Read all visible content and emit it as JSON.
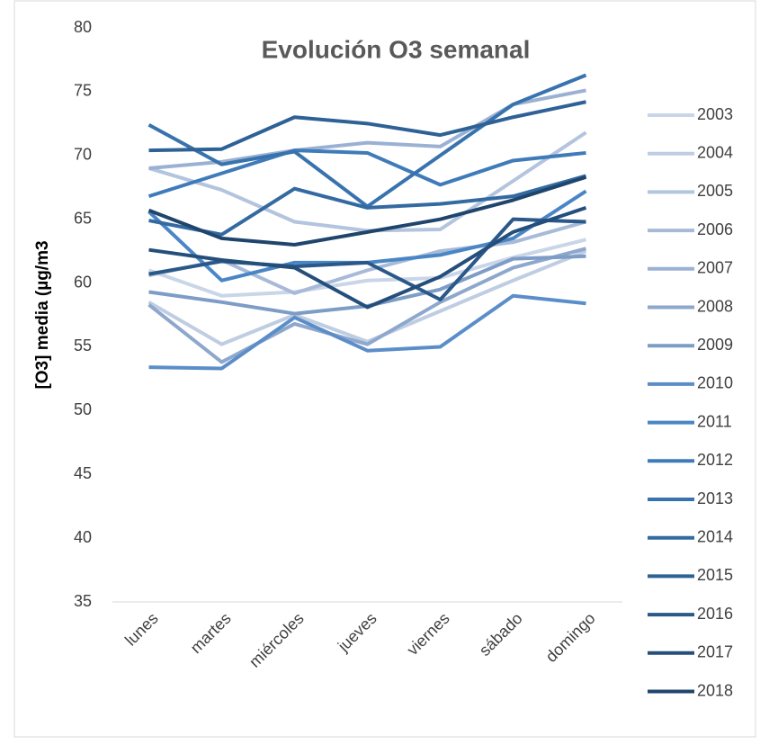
{
  "chart_data": {
    "type": "line",
    "title": "Evolución O3 semanal",
    "y_label": "[O3] media (µg/m3",
    "categories": [
      "lunes",
      "martes",
      "miércoles",
      "jueves",
      "viernes",
      "sábado",
      "domingo"
    ],
    "ylim": [
      35,
      80
    ],
    "yticks": [
      35,
      40,
      45,
      50,
      55,
      60,
      65,
      70,
      75,
      80
    ],
    "grid": false,
    "legend": "right",
    "series": [
      {
        "name": "2003",
        "color": "#c9d5e8",
        "values": [
          61,
          59,
          59.3,
          60.2,
          60.4,
          62,
          63.4
        ]
      },
      {
        "name": "2004",
        "color": "#bfcde3",
        "values": [
          58.5,
          55.2,
          57.5,
          55.4,
          57.8,
          60.2,
          62.5
        ]
      },
      {
        "name": "2005",
        "color": "#b3c4de",
        "values": [
          69,
          67.3,
          64.8,
          64.1,
          64.2,
          68,
          71.8
        ]
      },
      {
        "name": "2006",
        "color": "#a7bad8",
        "values": [
          60.6,
          61.8,
          59.2,
          61,
          62.5,
          63.2,
          64.8
        ]
      },
      {
        "name": "2007",
        "color": "#9bb1d3",
        "values": [
          69,
          69.5,
          70.4,
          71,
          70.7,
          74,
          75.1
        ]
      },
      {
        "name": "2008",
        "color": "#8ea7cc",
        "values": [
          58.3,
          53.8,
          56.8,
          55.2,
          58.5,
          61.2,
          62.7
        ]
      },
      {
        "name": "2009",
        "color": "#7d9cc6",
        "values": [
          59.3,
          58.5,
          57.6,
          58.2,
          59.5,
          61.9,
          62.1
        ]
      },
      {
        "name": "2010",
        "color": "#5b8ec8",
        "values": [
          53.4,
          53.3,
          57.3,
          54.7,
          55,
          59,
          58.4
        ]
      },
      {
        "name": "2011",
        "color": "#4a86c5",
        "values": [
          65.6,
          60.2,
          61.6,
          61.6,
          62.2,
          63.5,
          67.2
        ]
      },
      {
        "name": "2012",
        "color": "#3f7bb9",
        "values": [
          66.8,
          68.6,
          70.4,
          70.2,
          67.7,
          69.6,
          70.2
        ]
      },
      {
        "name": "2013",
        "color": "#3873ae",
        "values": [
          72.4,
          69.3,
          70.3,
          66,
          70,
          74,
          76.3
        ]
      },
      {
        "name": "2014",
        "color": "#336aa2",
        "values": [
          64.9,
          63.8,
          67.4,
          65.9,
          66.2,
          66.8,
          68.4
        ]
      },
      {
        "name": "2015",
        "color": "#2e6195",
        "values": [
          70.4,
          70.5,
          73,
          72.5,
          71.6,
          73,
          74.2
        ]
      },
      {
        "name": "2016",
        "color": "#2a5888",
        "values": [
          60.7,
          61.7,
          61.3,
          61.6,
          58.7,
          65,
          64.8
        ]
      },
      {
        "name": "2017",
        "color": "#254f7b",
        "values": [
          62.6,
          61.8,
          61.2,
          58.1,
          60.5,
          64,
          65.9
        ]
      },
      {
        "name": "2018",
        "color": "#20456c",
        "values": [
          65.7,
          63.5,
          63,
          64,
          65,
          66.5,
          68.3
        ]
      }
    ]
  }
}
